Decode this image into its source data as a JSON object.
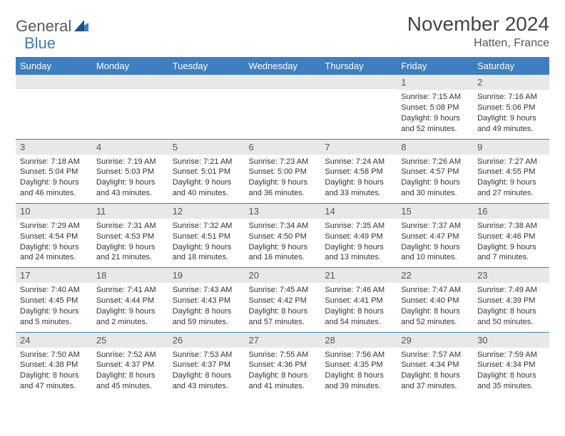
{
  "colors": {
    "header_bg": "#3d7fc0",
    "header_text": "#ffffff",
    "daynum_bg": "#e8e8e8",
    "border": "#3d7fc0",
    "body_text": "#333333",
    "title_text": "#444444"
  },
  "logo": {
    "word1": "General",
    "word2": "Blue"
  },
  "title": "November 2024",
  "location": "Hatten, France",
  "weekdays": [
    "Sunday",
    "Monday",
    "Tuesday",
    "Wednesday",
    "Thursday",
    "Friday",
    "Saturday"
  ],
  "days": [
    {
      "n": "",
      "sr": "",
      "ss": "",
      "d1": "",
      "d2": ""
    },
    {
      "n": "",
      "sr": "",
      "ss": "",
      "d1": "",
      "d2": ""
    },
    {
      "n": "",
      "sr": "",
      "ss": "",
      "d1": "",
      "d2": ""
    },
    {
      "n": "",
      "sr": "",
      "ss": "",
      "d1": "",
      "d2": ""
    },
    {
      "n": "",
      "sr": "",
      "ss": "",
      "d1": "",
      "d2": ""
    },
    {
      "n": "1",
      "sr": "Sunrise: 7:15 AM",
      "ss": "Sunset: 5:08 PM",
      "d1": "Daylight: 9 hours",
      "d2": "and 52 minutes."
    },
    {
      "n": "2",
      "sr": "Sunrise: 7:16 AM",
      "ss": "Sunset: 5:06 PM",
      "d1": "Daylight: 9 hours",
      "d2": "and 49 minutes."
    },
    {
      "n": "3",
      "sr": "Sunrise: 7:18 AM",
      "ss": "Sunset: 5:04 PM",
      "d1": "Daylight: 9 hours",
      "d2": "and 46 minutes."
    },
    {
      "n": "4",
      "sr": "Sunrise: 7:19 AM",
      "ss": "Sunset: 5:03 PM",
      "d1": "Daylight: 9 hours",
      "d2": "and 43 minutes."
    },
    {
      "n": "5",
      "sr": "Sunrise: 7:21 AM",
      "ss": "Sunset: 5:01 PM",
      "d1": "Daylight: 9 hours",
      "d2": "and 40 minutes."
    },
    {
      "n": "6",
      "sr": "Sunrise: 7:23 AM",
      "ss": "Sunset: 5:00 PM",
      "d1": "Daylight: 9 hours",
      "d2": "and 36 minutes."
    },
    {
      "n": "7",
      "sr": "Sunrise: 7:24 AM",
      "ss": "Sunset: 4:58 PM",
      "d1": "Daylight: 9 hours",
      "d2": "and 33 minutes."
    },
    {
      "n": "8",
      "sr": "Sunrise: 7:26 AM",
      "ss": "Sunset: 4:57 PM",
      "d1": "Daylight: 9 hours",
      "d2": "and 30 minutes."
    },
    {
      "n": "9",
      "sr": "Sunrise: 7:27 AM",
      "ss": "Sunset: 4:55 PM",
      "d1": "Daylight: 9 hours",
      "d2": "and 27 minutes."
    },
    {
      "n": "10",
      "sr": "Sunrise: 7:29 AM",
      "ss": "Sunset: 4:54 PM",
      "d1": "Daylight: 9 hours",
      "d2": "and 24 minutes."
    },
    {
      "n": "11",
      "sr": "Sunrise: 7:31 AM",
      "ss": "Sunset: 4:53 PM",
      "d1": "Daylight: 9 hours",
      "d2": "and 21 minutes."
    },
    {
      "n": "12",
      "sr": "Sunrise: 7:32 AM",
      "ss": "Sunset: 4:51 PM",
      "d1": "Daylight: 9 hours",
      "d2": "and 18 minutes."
    },
    {
      "n": "13",
      "sr": "Sunrise: 7:34 AM",
      "ss": "Sunset: 4:50 PM",
      "d1": "Daylight: 9 hours",
      "d2": "and 16 minutes."
    },
    {
      "n": "14",
      "sr": "Sunrise: 7:35 AM",
      "ss": "Sunset: 4:49 PM",
      "d1": "Daylight: 9 hours",
      "d2": "and 13 minutes."
    },
    {
      "n": "15",
      "sr": "Sunrise: 7:37 AM",
      "ss": "Sunset: 4:47 PM",
      "d1": "Daylight: 9 hours",
      "d2": "and 10 minutes."
    },
    {
      "n": "16",
      "sr": "Sunrise: 7:38 AM",
      "ss": "Sunset: 4:46 PM",
      "d1": "Daylight: 9 hours",
      "d2": "and 7 minutes."
    },
    {
      "n": "17",
      "sr": "Sunrise: 7:40 AM",
      "ss": "Sunset: 4:45 PM",
      "d1": "Daylight: 9 hours",
      "d2": "and 5 minutes."
    },
    {
      "n": "18",
      "sr": "Sunrise: 7:41 AM",
      "ss": "Sunset: 4:44 PM",
      "d1": "Daylight: 9 hours",
      "d2": "and 2 minutes."
    },
    {
      "n": "19",
      "sr": "Sunrise: 7:43 AM",
      "ss": "Sunset: 4:43 PM",
      "d1": "Daylight: 8 hours",
      "d2": "and 59 minutes."
    },
    {
      "n": "20",
      "sr": "Sunrise: 7:45 AM",
      "ss": "Sunset: 4:42 PM",
      "d1": "Daylight: 8 hours",
      "d2": "and 57 minutes."
    },
    {
      "n": "21",
      "sr": "Sunrise: 7:46 AM",
      "ss": "Sunset: 4:41 PM",
      "d1": "Daylight: 8 hours",
      "d2": "and 54 minutes."
    },
    {
      "n": "22",
      "sr": "Sunrise: 7:47 AM",
      "ss": "Sunset: 4:40 PM",
      "d1": "Daylight: 8 hours",
      "d2": "and 52 minutes."
    },
    {
      "n": "23",
      "sr": "Sunrise: 7:49 AM",
      "ss": "Sunset: 4:39 PM",
      "d1": "Daylight: 8 hours",
      "d2": "and 50 minutes."
    },
    {
      "n": "24",
      "sr": "Sunrise: 7:50 AM",
      "ss": "Sunset: 4:38 PM",
      "d1": "Daylight: 8 hours",
      "d2": "and 47 minutes."
    },
    {
      "n": "25",
      "sr": "Sunrise: 7:52 AM",
      "ss": "Sunset: 4:37 PM",
      "d1": "Daylight: 8 hours",
      "d2": "and 45 minutes."
    },
    {
      "n": "26",
      "sr": "Sunrise: 7:53 AM",
      "ss": "Sunset: 4:37 PM",
      "d1": "Daylight: 8 hours",
      "d2": "and 43 minutes."
    },
    {
      "n": "27",
      "sr": "Sunrise: 7:55 AM",
      "ss": "Sunset: 4:36 PM",
      "d1": "Daylight: 8 hours",
      "d2": "and 41 minutes."
    },
    {
      "n": "28",
      "sr": "Sunrise: 7:56 AM",
      "ss": "Sunset: 4:35 PM",
      "d1": "Daylight: 8 hours",
      "d2": "and 39 minutes."
    },
    {
      "n": "29",
      "sr": "Sunrise: 7:57 AM",
      "ss": "Sunset: 4:34 PM",
      "d1": "Daylight: 8 hours",
      "d2": "and 37 minutes."
    },
    {
      "n": "30",
      "sr": "Sunrise: 7:59 AM",
      "ss": "Sunset: 4:34 PM",
      "d1": "Daylight: 8 hours",
      "d2": "and 35 minutes."
    }
  ]
}
